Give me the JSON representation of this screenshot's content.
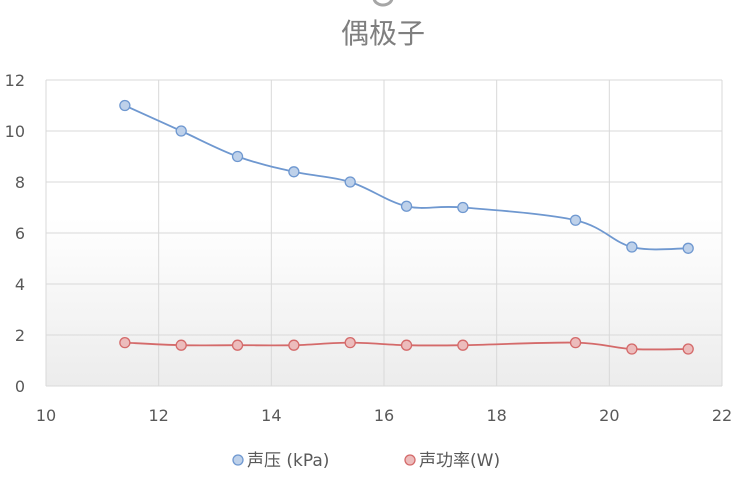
{
  "chart_data": {
    "type": "scatter",
    "title": "偶极子",
    "xlim": [
      10,
      22
    ],
    "ylim": [
      0,
      12
    ],
    "x_ticks": [
      "10",
      "12",
      "14",
      "16",
      "18",
      "20",
      "22"
    ],
    "y_ticks": [
      "0",
      "2",
      "4",
      "6",
      "8",
      "10",
      "12"
    ],
    "grid": true,
    "smooth_lines": true,
    "legend_position": "bottom",
    "series": [
      {
        "name": "声压 (kPa)",
        "color": "#6f98d0",
        "x": [
          11.4,
          12.4,
          13.4,
          14.4,
          15.4,
          16.4,
          17.4,
          19.4,
          20.4,
          21.4
        ],
        "y": [
          11.0,
          10.0,
          9.0,
          8.4,
          8.0,
          7.05,
          7.0,
          6.5,
          5.45,
          5.4
        ]
      },
      {
        "name": "声功率(W)",
        "color": "#d46a6a",
        "x": [
          11.4,
          12.4,
          13.4,
          14.4,
          15.4,
          16.4,
          17.4,
          19.4,
          20.4,
          21.4
        ],
        "y": [
          1.7,
          1.6,
          1.6,
          1.6,
          1.7,
          1.6,
          1.6,
          1.7,
          1.45,
          1.45
        ]
      }
    ]
  }
}
